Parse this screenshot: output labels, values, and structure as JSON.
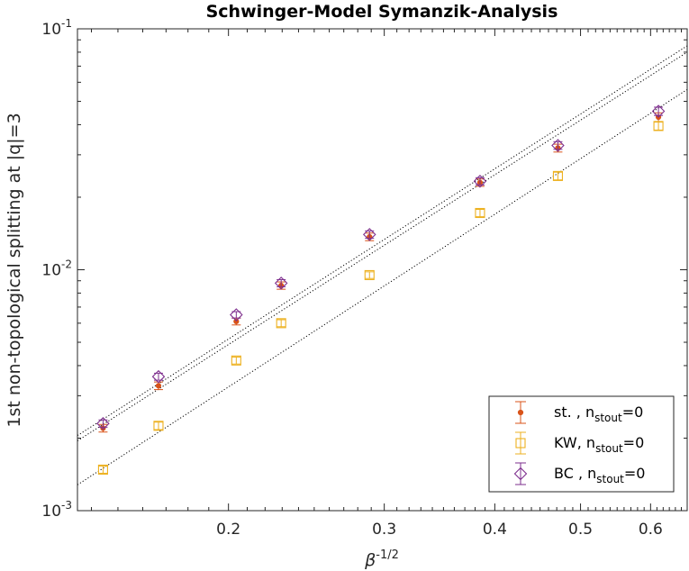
{
  "chart_data": {
    "type": "scatter",
    "title": "Schwinger-Model Symanzik-Analysis",
    "xlabel_base": "β",
    "xlabel_sup": "-1/2",
    "ylabel": "1st non-topological splitting at |q|=3",
    "x_scale": "log",
    "y_scale": "log",
    "xlim": [
      0.135,
      0.66
    ],
    "ylim": [
      0.001,
      0.1
    ],
    "x_ticks": [
      0.2,
      0.3,
      0.4,
      0.5,
      0.6
    ],
    "x_tick_labels": [
      "0.2",
      "0.3",
      "0.4",
      "0.5",
      "0.6"
    ],
    "y_ticks": [
      {
        "value": 0.001,
        "base": "10",
        "exp": "-3"
      },
      {
        "value": 0.01,
        "base": "10",
        "exp": "-2"
      },
      {
        "value": 0.1,
        "base": "10",
        "exp": "-1"
      }
    ],
    "grid": false,
    "legend_position": "bottom-right",
    "series": [
      {
        "name_main": "st. , n",
        "name_sub": "stout",
        "name_tail": "=0",
        "color": "#D95319",
        "marker": "dot",
        "x": [
          0.1443,
          0.1667,
          0.2041,
          0.2294,
          0.2887,
          0.3849,
          0.4714,
          0.6124
        ],
        "y": [
          0.0022,
          0.0033,
          0.0061,
          0.0086,
          0.0137,
          0.023,
          0.032,
          0.043
        ],
        "err": [
          8e-05,
          0.00012,
          0.0002,
          0.0003,
          0.0005,
          0.0008,
          0.0012,
          0.0018
        ]
      },
      {
        "name_main": "KW, n",
        "name_sub": "stout",
        "name_tail": "=0",
        "color": "#EDB120",
        "marker": "square",
        "x": [
          0.1443,
          0.1667,
          0.2041,
          0.2294,
          0.2887,
          0.3849,
          0.4714,
          0.6124
        ],
        "y": [
          0.00148,
          0.00225,
          0.0042,
          0.006,
          0.0095,
          0.0172,
          0.0245,
          0.0395
        ],
        "err": [
          5e-05,
          8e-05,
          0.00014,
          0.0002,
          0.0003,
          0.0006,
          0.0009,
          0.0015
        ]
      },
      {
        "name_main": "BC , n",
        "name_sub": "stout",
        "name_tail": "=0",
        "color": "#7E2F8E",
        "marker": "diamond",
        "x": [
          0.1443,
          0.1667,
          0.2041,
          0.2294,
          0.2887,
          0.3849,
          0.4714,
          0.6124
        ],
        "y": [
          0.0023,
          0.0036,
          0.0065,
          0.0088,
          0.014,
          0.0233,
          0.0328,
          0.0455
        ],
        "err": [
          8e-05,
          0.00012,
          0.0002,
          0.0003,
          0.0005,
          0.0008,
          0.0012,
          0.0018
        ]
      }
    ],
    "fit_lines": [
      {
        "x": [
          0.135,
          0.66
        ],
        "y": [
          0.00205,
          0.085
        ]
      },
      {
        "x": [
          0.135,
          0.66
        ],
        "y": [
          0.00195,
          0.08
        ]
      },
      {
        "x": [
          0.135,
          0.66
        ],
        "y": [
          0.00128,
          0.056
        ]
      }
    ]
  }
}
